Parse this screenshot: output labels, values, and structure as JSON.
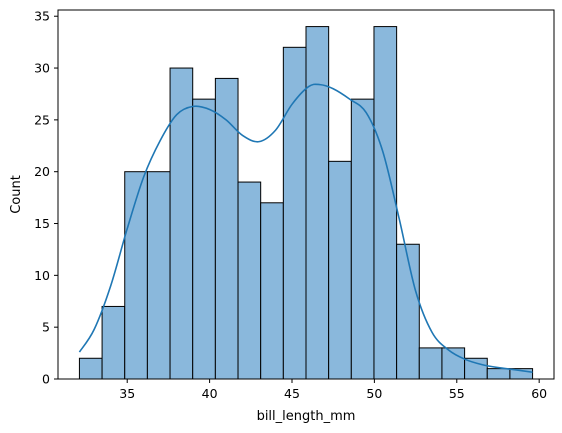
{
  "chart_data": {
    "type": "bar",
    "subtype": "histogram",
    "xlabel": "bill_length_mm",
    "ylabel": "Count",
    "xlim": [
      30.8,
      60.9
    ],
    "ylim": [
      0,
      35.6
    ],
    "xticks": [
      35,
      40,
      45,
      50,
      55,
      60
    ],
    "yticks": [
      0,
      5,
      10,
      15,
      20,
      25,
      30,
      35
    ],
    "bin_start": 32.1,
    "bin_width": 1.375,
    "counts": [
      2,
      7,
      20,
      20,
      30,
      27,
      29,
      19,
      17,
      32,
      34,
      21,
      27,
      34,
      13,
      3,
      3,
      2,
      1,
      1
    ],
    "kde": {
      "x": [
        32.1,
        33.0,
        34.0,
        35.0,
        36.0,
        37.0,
        38.0,
        39.0,
        40.0,
        41.0,
        42.0,
        43.0,
        44.0,
        45.0,
        46.0,
        46.7,
        47.5,
        48.5,
        49.5,
        50.5,
        51.5,
        52.5,
        53.5,
        54.5,
        55.5,
        56.5,
        57.5,
        58.5,
        59.6
      ],
      "y": [
        2.6,
        4.8,
        9.0,
        14.5,
        19.5,
        23.0,
        25.5,
        26.3,
        26.0,
        25.0,
        23.5,
        22.9,
        24.0,
        26.5,
        28.2,
        28.4,
        28.0,
        27.0,
        25.7,
        22.0,
        15.5,
        8.5,
        4.5,
        2.8,
        1.9,
        1.4,
        1.1,
        0.9,
        0.65
      ]
    },
    "grid": false,
    "colors": {
      "bar_fill": "#8ab8dc",
      "bar_edge": "#000000",
      "kde_line": "#1f77b4"
    }
  }
}
